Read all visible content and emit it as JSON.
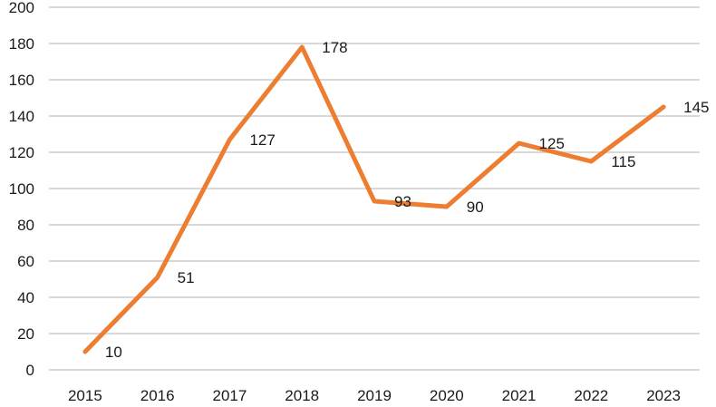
{
  "chart_data": {
    "type": "line",
    "categories": [
      "2015",
      "2016",
      "2017",
      "2018",
      "2019",
      "2020",
      "2021",
      "2022",
      "2023"
    ],
    "values": [
      10,
      51,
      127,
      178,
      93,
      90,
      125,
      115,
      145
    ],
    "data_labels": [
      "10",
      "51",
      "127",
      "178",
      "93",
      "90",
      "125",
      "115",
      "145"
    ],
    "ylim": [
      0,
      200
    ],
    "y_tick_step": 20,
    "y_tick_labels": [
      "0",
      "20",
      "40",
      "60",
      "80",
      "100",
      "120",
      "140",
      "160",
      "180",
      "200"
    ],
    "grid": true,
    "legend": "none",
    "colors": {
      "line": "#ED7D31",
      "gridline": "#D9D9D9",
      "text": "#1a1a1a",
      "background": "#FFFFFF"
    }
  }
}
